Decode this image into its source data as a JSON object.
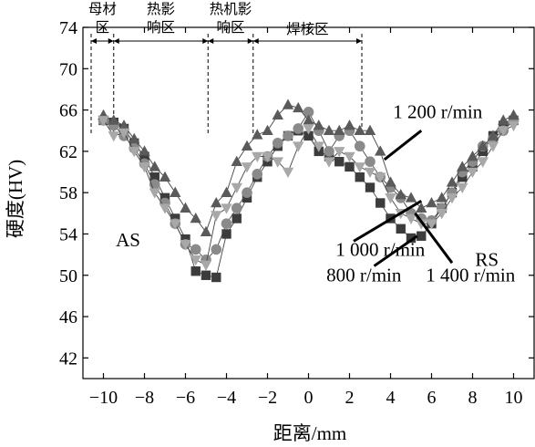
{
  "chart_data": {
    "type": "line",
    "title": "",
    "xlabel": "距离/mm",
    "ylabel": "硬度(HV)",
    "xlim": [
      -11,
      11
    ],
    "ylim": [
      40,
      74
    ],
    "xticks": [
      -10,
      -8,
      -6,
      -4,
      -2,
      0,
      2,
      4,
      6,
      8,
      10
    ],
    "yticks": [
      42,
      46,
      50,
      54,
      58,
      62,
      66,
      70,
      74
    ],
    "grid": false,
    "legend": "none",
    "zones": [
      {
        "label": "母材区",
        "from": -10.6,
        "to": -9.5
      },
      {
        "label": "热影响区",
        "from": -9.5,
        "to": -4.9
      },
      {
        "label": "热机影响区",
        "from": -4.9,
        "to": -2.7
      },
      {
        "label": "焊核区",
        "from": -2.7,
        "to": 2.6
      }
    ],
    "side_labels": [
      {
        "label": "AS",
        "x": -8.8,
        "y": 52.8
      },
      {
        "label": "RS",
        "x": 8.7,
        "y": 50.9
      }
    ],
    "series": [
      {
        "name": "800 r/min",
        "marker": "square",
        "color": "#3c3c3c",
        "x": [
          -10,
          -9.5,
          -9,
          -8.5,
          -8,
          -7.5,
          -7,
          -6.5,
          -6,
          -5.5,
          -5,
          -4.5,
          -4,
          -3.5,
          -3,
          -2.5,
          -2,
          -1.5,
          -1,
          -0.5,
          0,
          0.5,
          1,
          1.5,
          2,
          2.5,
          3,
          3.5,
          4,
          4.5,
          5,
          5.5,
          6,
          6.5,
          7,
          7.5,
          8,
          8.5,
          9,
          9.5,
          10
        ],
        "y": [
          65,
          64.8,
          64.2,
          62.8,
          61.5,
          59.5,
          57.5,
          55.5,
          53.5,
          50.4,
          50.0,
          49.8,
          54.0,
          55.5,
          57.5,
          59.5,
          61.0,
          62.5,
          63.5,
          64.0,
          63.5,
          62.0,
          61.5,
          61.0,
          60.5,
          59.5,
          58.5,
          57.0,
          55.5,
          54.5,
          53.6,
          53.8,
          55.0,
          56.5,
          58.0,
          59.5,
          60.5,
          62.0,
          63.5,
          64.5,
          65.0
        ]
      },
      {
        "name": "1 000 r/min",
        "marker": "circle",
        "color": "#8a8a8a",
        "x": [
          -10,
          -9.5,
          -9,
          -8.5,
          -8,
          -7.5,
          -7,
          -6.5,
          -6,
          -5.5,
          -5,
          -4.5,
          -4,
          -3.5,
          -3,
          -2.5,
          -2,
          -1.5,
          -1,
          -0.5,
          0,
          0.5,
          1,
          1.5,
          2,
          2.5,
          3,
          3.5,
          4,
          4.5,
          5,
          5.5,
          6,
          6.5,
          7,
          7.5,
          8,
          8.5,
          9,
          9.5,
          10
        ],
        "y": [
          65.0,
          64.5,
          63.5,
          62.3,
          60.8,
          58.8,
          57.0,
          55.0,
          53.0,
          52.5,
          51.5,
          52.5,
          55.0,
          56.5,
          58.0,
          59.8,
          61.5,
          62.8,
          63.5,
          64.2,
          65.8,
          64.0,
          62.0,
          63.5,
          64.0,
          62.5,
          61.0,
          59.5,
          58.5,
          57.5,
          56.0,
          55.5,
          55.3,
          56.5,
          58.0,
          60.0,
          61.0,
          62.5,
          63.2,
          64.0,
          65.0
        ]
      },
      {
        "name": "1 200 r/min",
        "marker": "triangle-up",
        "color": "#5a5a5a",
        "x": [
          -10,
          -9.5,
          -9,
          -8.5,
          -8,
          -7.5,
          -7,
          -6.5,
          -6,
          -5.5,
          -5,
          -4.5,
          -4,
          -3.5,
          -3,
          -2.5,
          -2,
          -1.5,
          -1,
          -0.5,
          0,
          0.5,
          1,
          1.5,
          2,
          2.5,
          3,
          3.5,
          4,
          4.5,
          5,
          5.5,
          6,
          6.5,
          7,
          7.5,
          8,
          8.5,
          9,
          9.5,
          10
        ],
        "y": [
          65.5,
          65.0,
          64.5,
          63.2,
          62.0,
          60.5,
          59.5,
          58.0,
          56.5,
          55.5,
          54.2,
          57.0,
          58.0,
          61.0,
          62.5,
          63.6,
          64.0,
          65.5,
          66.5,
          66.2,
          65.0,
          64.5,
          64.0,
          64.0,
          64.5,
          64.0,
          64.0,
          62.0,
          59.0,
          57.8,
          57.5,
          56.5,
          57.0,
          57.5,
          59.0,
          60.5,
          61.5,
          62.5,
          63.5,
          65.0,
          65.5
        ]
      },
      {
        "name": "1 400 r/min",
        "marker": "triangle-down",
        "color": "#a8a8a8",
        "x": [
          -10,
          -9.5,
          -9,
          -8.5,
          -8,
          -7.5,
          -7,
          -6.5,
          -6,
          -5.5,
          -5,
          -4.5,
          -4,
          -3.5,
          -3,
          -2.5,
          -2,
          -1.5,
          -1,
          -0.5,
          0,
          0.5,
          1,
          1.5,
          2,
          2.5,
          3,
          3.5,
          4,
          4.5,
          5,
          5.5,
          6,
          6.5,
          7,
          7.5,
          8,
          8.5,
          9,
          9.5,
          10
        ],
        "y": [
          65.0,
          63.5,
          63.8,
          62.0,
          60.5,
          58.0,
          56.5,
          55.0,
          53.0,
          51.5,
          51.0,
          55.8,
          56.5,
          58.5,
          60.5,
          61.5,
          61.5,
          61.0,
          60.0,
          62.5,
          64.2,
          62.5,
          61.0,
          62.0,
          61.5,
          60.5,
          60.0,
          59.5,
          57.5,
          56.0,
          55.5,
          55.0,
          55.0,
          56.0,
          57.5,
          58.5,
          60.0,
          61.0,
          62.5,
          64.0,
          64.5
        ]
      }
    ],
    "annotations": [
      {
        "text": "1 200 r/min",
        "series": "1 200 r/min",
        "label_x": 6.3,
        "label_y": 65.2,
        "tip_x": 3.7,
        "tip_y": 61.2,
        "from_x": 5.5,
        "from_y": 64.0
      },
      {
        "text": "1 000 r/min",
        "series": "1 000 r/min",
        "label_x": 3.5,
        "label_y": 51.9,
        "tip_x": 5.5,
        "tip_y": 57.2,
        "from_x": 2.2,
        "from_y": 53.3
      },
      {
        "text": "800 r/min",
        "series": "800 r/min",
        "label_x": 2.7,
        "label_y": 49.4,
        "tip_x": 5.3,
        "tip_y": 53.8,
        "from_x": 3.2,
        "from_y": 50.9
      },
      {
        "text": "1 400 r/min",
        "series": "1 400 r/min",
        "label_x": 7.9,
        "label_y": 49.4,
        "tip_x": 5.2,
        "tip_y": 56.0,
        "from_x": 7.0,
        "from_y": 51.2
      }
    ]
  }
}
